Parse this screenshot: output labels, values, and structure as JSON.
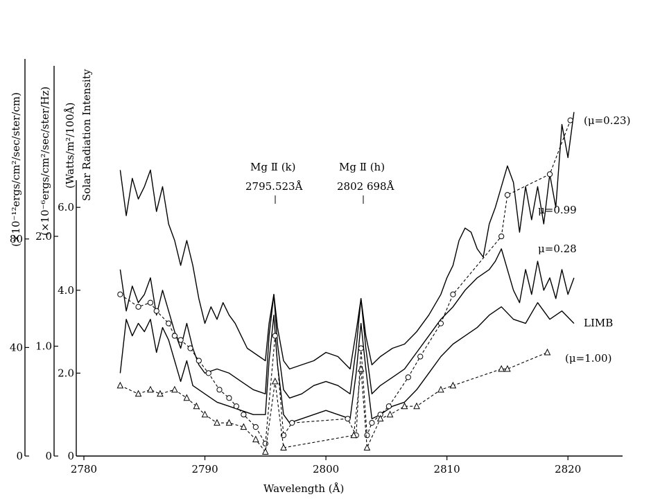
{
  "chart_data": {
    "type": "line",
    "xlabel": "Wavelength (Å)",
    "x_ticks": [
      "2780",
      "2790",
      "2800",
      "2810",
      "2820"
    ],
    "xlim": [
      2780,
      2824
    ],
    "y_axes": [
      {
        "label": "(×10⁻¹²ergs/cm²/sec/ster/cm)",
        "ticks": [
          {
            "value": 0,
            "label": "0"
          },
          {
            "value": 40,
            "label": "40"
          },
          {
            "value": 80,
            "label": "80"
          }
        ]
      },
      {
        "label": "(×10⁻⁶ergs/cm²/sec/ster/Hz)",
        "ticks": [
          {
            "value": 0,
            "label": "0"
          },
          {
            "value": 1.0,
            "label": "1.0"
          },
          {
            "value": 2.0,
            "label": "2.0"
          }
        ]
      },
      {
        "label": "(Watts/m²/100Å)",
        "ticks": [
          {
            "value": 0,
            "label": "0"
          },
          {
            "value": 2.0,
            "label": "2.0"
          },
          {
            "value": 4.0,
            "label": "4.0"
          },
          {
            "value": 6.0,
            "label": "6.0"
          }
        ]
      },
      {
        "label": "Solar Radiation Intensity",
        "ticks": []
      }
    ],
    "ylim": [
      0,
      8.3
    ],
    "annotations": [
      {
        "line1": "Mg Ⅱ (k)",
        "line2": "2795.523Å",
        "x": 2795.5
      },
      {
        "line1": "Mg Ⅱ (h)",
        "line2": "2802 698Å",
        "x": 2802.7
      }
    ],
    "series": [
      {
        "name": "μ=0.99",
        "style": "solid",
        "x": [
          2783.0,
          2783.5,
          2784.0,
          2784.5,
          2785.0,
          2785.5,
          2786.0,
          2786.5,
          2787.0,
          2787.5,
          2788.0,
          2788.5,
          2789.0,
          2789.5,
          2790.0,
          2790.5,
          2791.0,
          2791.5,
          2792.0,
          2792.5,
          2793.0,
          2793.5,
          2794.0,
          2794.5,
          2795.0,
          2795.3,
          2795.7,
          2796.0,
          2796.5,
          2797.0,
          2798.0,
          2799.0,
          2800.0,
          2801.0,
          2802.0,
          2802.5,
          2802.9,
          2803.3,
          2803.8,
          2804.5,
          2805.5,
          2806.5,
          2807.5,
          2808.5,
          2809.5,
          2810.0,
          2810.5,
          2811.0,
          2811.5,
          2812.0,
          2812.5,
          2813.0,
          2813.5,
          2814.0,
          2814.5,
          2815.0,
          2815.5,
          2816.0,
          2816.5,
          2817.0,
          2817.5,
          2818.0,
          2818.5,
          2819.0,
          2819.5,
          2820.0,
          2820.5
        ],
        "y": [
          6.9,
          5.8,
          6.7,
          6.2,
          6.5,
          6.9,
          5.9,
          6.5,
          5.6,
          5.2,
          4.6,
          5.2,
          4.6,
          3.8,
          3.2,
          3.6,
          3.3,
          3.7,
          3.4,
          3.2,
          2.9,
          2.6,
          2.5,
          2.4,
          2.3,
          3.2,
          3.9,
          3.1,
          2.3,
          2.1,
          2.2,
          2.3,
          2.5,
          2.4,
          2.1,
          3.0,
          3.8,
          2.9,
          2.2,
          2.4,
          2.6,
          2.7,
          3.0,
          3.4,
          3.9,
          4.3,
          4.6,
          5.2,
          5.5,
          5.4,
          5.0,
          4.8,
          5.6,
          6.0,
          6.5,
          7.0,
          6.6,
          5.4,
          6.5,
          5.7,
          6.5,
          5.6,
          6.8,
          6.0,
          8.0,
          7.2,
          8.3
        ]
      },
      {
        "name": "μ=0.28",
        "style": "solid",
        "x": [
          2783.0,
          2783.5,
          2784.0,
          2784.5,
          2785.0,
          2785.5,
          2786.0,
          2786.5,
          2787.0,
          2787.5,
          2788.0,
          2788.5,
          2789.0,
          2789.5,
          2790.0,
          2791.0,
          2792.0,
          2793.0,
          2794.0,
          2795.0,
          2795.3,
          2795.7,
          2796.0,
          2796.5,
          2797.0,
          2798.0,
          2799.0,
          2800.0,
          2801.0,
          2802.0,
          2802.5,
          2802.9,
          2803.3,
          2803.8,
          2804.5,
          2805.5,
          2806.5,
          2807.5,
          2808.5,
          2809.5,
          2810.5,
          2811.5,
          2812.5,
          2813.5,
          2814.0,
          2814.5,
          2815.0,
          2815.5,
          2816.0,
          2816.5,
          2817.0,
          2817.5,
          2818.0,
          2818.5,
          2819.0,
          2819.5,
          2820.0,
          2820.5
        ],
        "y": [
          4.5,
          3.5,
          4.1,
          3.7,
          3.9,
          4.3,
          3.4,
          4.0,
          3.5,
          3.0,
          2.6,
          3.2,
          2.6,
          2.2,
          2.0,
          2.1,
          2.0,
          1.8,
          1.6,
          1.5,
          2.9,
          3.9,
          2.7,
          1.6,
          1.4,
          1.5,
          1.7,
          1.8,
          1.7,
          1.5,
          2.6,
          3.8,
          2.6,
          1.5,
          1.7,
          1.9,
          2.1,
          2.5,
          2.9,
          3.3,
          3.6,
          4.0,
          4.3,
          4.5,
          4.7,
          5.0,
          4.5,
          4.0,
          3.7,
          4.5,
          3.9,
          4.7,
          4.0,
          4.3,
          3.8,
          4.5,
          3.9,
          4.3
        ]
      },
      {
        "name": "LIMB",
        "style": "solid",
        "x": [
          2783.0,
          2783.5,
          2784.0,
          2784.5,
          2785.0,
          2785.5,
          2786.0,
          2786.5,
          2787.0,
          2787.5,
          2788.0,
          2788.5,
          2789.0,
          2790.0,
          2791.0,
          2792.0,
          2793.0,
          2794.0,
          2795.0,
          2795.3,
          2795.7,
          2796.0,
          2796.5,
          2797.0,
          2798.0,
          2799.0,
          2800.0,
          2801.0,
          2802.0,
          2802.5,
          2802.9,
          2803.3,
          2803.8,
          2804.5,
          2805.5,
          2806.5,
          2807.5,
          2808.5,
          2809.5,
          2810.5,
          2811.5,
          2812.5,
          2813.5,
          2814.5,
          2815.5,
          2816.5,
          2817.5,
          2818.5,
          2819.5,
          2820.5
        ],
        "y": [
          2.0,
          3.3,
          2.9,
          3.2,
          3.0,
          3.3,
          2.5,
          3.1,
          2.8,
          2.3,
          1.8,
          2.3,
          1.7,
          1.5,
          1.3,
          1.2,
          1.1,
          1.0,
          1.0,
          2.3,
          3.4,
          2.2,
          1.0,
          0.8,
          0.9,
          1.0,
          1.1,
          1.0,
          0.9,
          2.0,
          3.2,
          2.1,
          0.9,
          1.0,
          1.2,
          1.3,
          1.6,
          2.0,
          2.4,
          2.7,
          2.9,
          3.1,
          3.4,
          3.6,
          3.3,
          3.2,
          3.7,
          3.3,
          3.5,
          3.2
        ]
      },
      {
        "name": "(μ=1.00)",
        "style": "dashed",
        "marker": "circle",
        "x": [
          2783.0,
          2784.5,
          2785.5,
          2786.0,
          2787.0,
          2787.5,
          2788.0,
          2788.8,
          2789.5,
          2790.3,
          2791.2,
          2792.0,
          2792.6,
          2793.2,
          2794.2,
          2795.0,
          2795.8,
          2796.5,
          2797.2,
          2801.8,
          2802.5,
          2802.9,
          2803.4,
          2803.8,
          2804.5,
          2805.2,
          2806.8,
          2807.8,
          2809.5,
          2810.5,
          2814.5,
          2815.0,
          2818.5,
          2820.2
        ],
        "y": [
          3.9,
          3.6,
          3.7,
          3.5,
          3.2,
          2.9,
          2.8,
          2.6,
          2.3,
          2.0,
          1.6,
          1.4,
          1.2,
          1.0,
          0.7,
          0.3,
          2.9,
          0.5,
          0.8,
          0.9,
          0.5,
          2.6,
          0.5,
          0.8,
          1.0,
          1.2,
          1.9,
          2.4,
          3.2,
          3.9,
          5.3,
          6.3,
          6.8,
          8.1
        ]
      },
      {
        "name": "(μ=0.23)",
        "style": "dashed",
        "marker": "triangle",
        "x": [
          2783.0,
          2784.5,
          2785.5,
          2786.3,
          2787.5,
          2788.5,
          2789.3,
          2790.0,
          2791.0,
          2792.0,
          2793.2,
          2794.2,
          2795.0,
          2795.8,
          2796.5,
          2802.3,
          2802.9,
          2803.4,
          2804.5,
          2805.3,
          2806.5,
          2807.5,
          2809.5,
          2810.5,
          2814.5,
          2815.0,
          2818.3
        ],
        "y": [
          1.7,
          1.5,
          1.6,
          1.5,
          1.6,
          1.4,
          1.2,
          1.0,
          0.8,
          0.8,
          0.7,
          0.4,
          0.1,
          1.8,
          0.2,
          0.5,
          2.1,
          0.2,
          0.9,
          1.0,
          1.2,
          1.2,
          1.6,
          1.7,
          2.1,
          2.1,
          2.5
        ]
      }
    ]
  }
}
